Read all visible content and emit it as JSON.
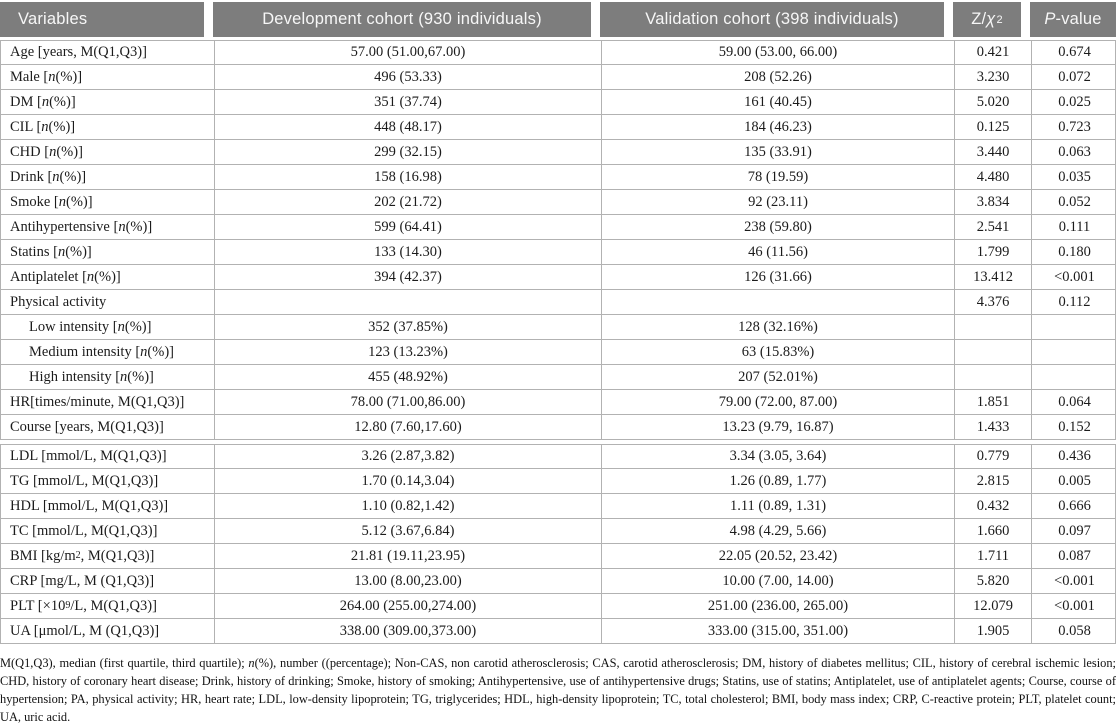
{
  "colors": {
    "header_bg": "#7d7d7d",
    "header_text": "#f7f7f7",
    "border": "#b2b2b2"
  },
  "table": {
    "headers": [
      "Variables",
      "Development cohort (930 individuals)",
      "Validation cohort (398 individuals)",
      "Z/*χ*^2^",
      "*P*-value"
    ],
    "rows": [
      {
        "variable": "Age [years, M(Q1,Q3)]",
        "development": "57.00 (51.00,67.00)",
        "validation": "59.00 (53.00, 66.00)",
        "z_chi2": "0.421",
        "p_value": "0.674",
        "indent": false,
        "section_break_after": false
      },
      {
        "variable": "Male [*n* (%)]",
        "development": "496 (53.33)",
        "validation": "208 (52.26)",
        "z_chi2": "3.230",
        "p_value": "0.072",
        "indent": false,
        "section_break_after": false
      },
      {
        "variable": "DM [*n* (%)]",
        "development": "351 (37.74)",
        "validation": "161 (40.45)",
        "z_chi2": "5.020",
        "p_value": "0.025",
        "indent": false,
        "section_break_after": false
      },
      {
        "variable": "CIL [*n* (%)]",
        "development": "448 (48.17)",
        "validation": "184 (46.23)",
        "z_chi2": "0.125",
        "p_value": "0.723",
        "indent": false,
        "section_break_after": false
      },
      {
        "variable": "CHD [*n* (%)]",
        "development": "299 (32.15)",
        "validation": "135 (33.91)",
        "z_chi2": "3.440",
        "p_value": "0.063",
        "indent": false,
        "section_break_after": false
      },
      {
        "variable": "Drink [*n* (%)]",
        "development": "158 (16.98)",
        "validation": "78 (19.59)",
        "z_chi2": "4.480",
        "p_value": "0.035",
        "indent": false,
        "section_break_after": false
      },
      {
        "variable": "Smoke [*n* (%)]",
        "development": "202 (21.72)",
        "validation": "92 (23.11)",
        "z_chi2": "3.834",
        "p_value": "0.052",
        "indent": false,
        "section_break_after": false
      },
      {
        "variable": "Antihypertensive [*n* (%)]",
        "development": "599 (64.41)",
        "validation": "238 (59.80)",
        "z_chi2": "2.541",
        "p_value": "0.111",
        "indent": false,
        "section_break_after": false
      },
      {
        "variable": "Statins [*n* (%)]",
        "development": "133 (14.30)",
        "validation": "46 (11.56)",
        "z_chi2": "1.799",
        "p_value": "0.180",
        "indent": false,
        "section_break_after": false
      },
      {
        "variable": "Antiplatelet [*n* (%)]",
        "development": "394 (42.37)",
        "validation": "126 (31.66)",
        "z_chi2": "13.412",
        "p_value": "<0.001",
        "indent": false,
        "section_break_after": false
      },
      {
        "variable": "Physical activity",
        "development": "",
        "validation": "",
        "z_chi2": "4.376",
        "p_value": "0.112",
        "indent": false,
        "section_break_after": false
      },
      {
        "variable": "Low intensity [*n* (%)]",
        "development": "352 (37.85%)",
        "validation": "128 (32.16%)",
        "z_chi2": "",
        "p_value": "",
        "indent": true,
        "section_break_after": false
      },
      {
        "variable": "Medium intensity [*n* (%)]",
        "development": "123 (13.23%)",
        "validation": "63 (15.83%)",
        "z_chi2": "",
        "p_value": "",
        "indent": true,
        "section_break_after": false
      },
      {
        "variable": "High intensity [*n* (%)]",
        "development": "455 (48.92%)",
        "validation": "207 (52.01%)",
        "z_chi2": "",
        "p_value": "",
        "indent": true,
        "section_break_after": false
      },
      {
        "variable": "HR[times/minute, M(Q1,Q3)]",
        "development": "78.00 (71.00,86.00)",
        "validation": "79.00 (72.00, 87.00)",
        "z_chi2": "1.851",
        "p_value": "0.064",
        "indent": false,
        "section_break_after": false
      },
      {
        "variable": "Course [years, M(Q1,Q3)]",
        "development": "12.80 (7.60,17.60)",
        "validation": "13.23 (9.79, 16.87)",
        "z_chi2": "1.433",
        "p_value": "0.152",
        "indent": false,
        "section_break_after": true
      },
      {
        "variable": "LDL [mmol/L, M(Q1,Q3)]",
        "development": "3.26 (2.87,3.82)",
        "validation": "3.34 (3.05, 3.64)",
        "z_chi2": "0.779",
        "p_value": "0.436",
        "indent": false,
        "section_break_after": false
      },
      {
        "variable": "TG [mmol/L, M(Q1,Q3)]",
        "development": "1.70 (0.14,3.04)",
        "validation": "1.26 (0.89, 1.77)",
        "z_chi2": "2.815",
        "p_value": "0.005",
        "indent": false,
        "section_break_after": false
      },
      {
        "variable": "HDL [mmol/L, M(Q1,Q3)]",
        "development": "1.10 (0.82,1.42)",
        "validation": "1.11 (0.89, 1.31)",
        "z_chi2": "0.432",
        "p_value": "0.666",
        "indent": false,
        "section_break_after": false
      },
      {
        "variable": "TC [mmol/L, M(Q1,Q3)]",
        "development": "5.12 (3.67,6.84)",
        "validation": "4.98 (4.29, 5.66)",
        "z_chi2": "1.660",
        "p_value": "0.097",
        "indent": false,
        "section_break_after": false
      },
      {
        "variable": "BMI [kg/m^2^, M(Q1,Q3)]",
        "development": "21.81 (19.11,23.95)",
        "validation": "22.05 (20.52, 23.42)",
        "z_chi2": "1.711",
        "p_value": "0.087",
        "indent": false,
        "section_break_after": false
      },
      {
        "variable": "CRP [mg/L, M (Q1,Q3)]",
        "development": "13.00 (8.00,23.00)",
        "validation": "10.00 (7.00, 14.00)",
        "z_chi2": "5.820",
        "p_value": "<0.001",
        "indent": false,
        "section_break_after": false
      },
      {
        "variable": "PLT [×10^9^/L, M(Q1,Q3)]",
        "development": "264.00 (255.00,274.00)",
        "validation": "251.00 (236.00, 265.00)",
        "z_chi2": "12.079",
        "p_value": "<0.001",
        "indent": false,
        "section_break_after": false
      },
      {
        "variable": "UA [μmol/L, M (Q1,Q3)]",
        "development": "338.00 (309.00,373.00)",
        "validation": "333.00 (315.00, 351.00)",
        "z_chi2": "1.905",
        "p_value": "0.058",
        "indent": false,
        "section_break_after": false
      }
    ]
  },
  "footnote": "M(Q1,Q3), median (first quartile, third quartile); *n*(%), number ((percentage); Non-CAS, non carotid atherosclerosis; CAS, carotid atherosclerosis; DM, history of diabetes mellitus; CIL, history of cerebral ischemic lesion; CHD, history of coronary heart disease; Drink, history of drinking; Smoke, history of smoking; Antihypertensive, use of antihypertensive drugs; Statins, use of statins; Antiplatelet, use of antiplatelet agents; Course, course of hypertension; PA, physical activity; HR, heart rate; LDL, low-density lipoprotein; TG, triglycerides; HDL, high-density lipoprotein; TC, total cholesterol; BMI, body mass index; CRP, C-reactive protein; PLT, platelet count; UA, uric acid."
}
